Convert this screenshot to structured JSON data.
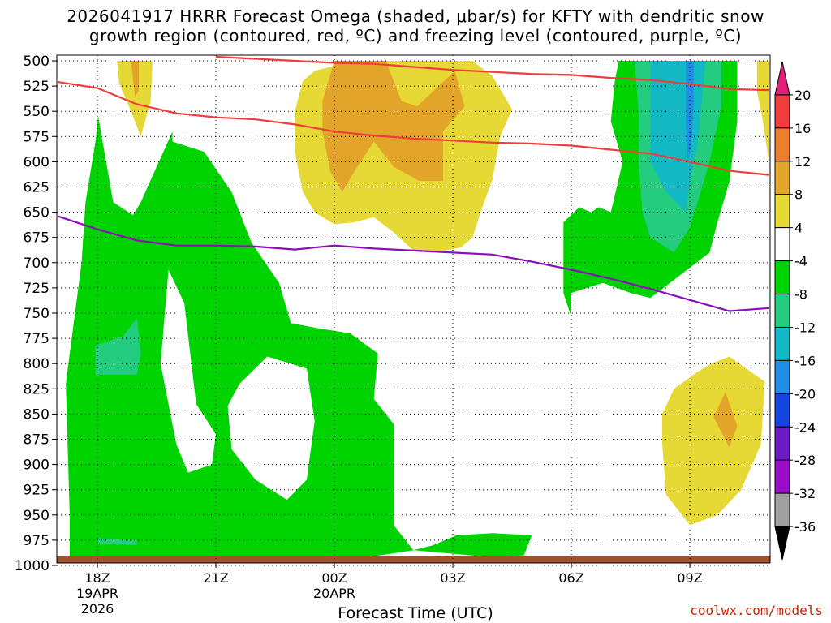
{
  "title_line1": "2026041917 HRRR Forecast Omega (shaded, μbar/s) for KFTY with dendritic snow",
  "title_line2": "growth region (contoured, red, ºC) and freezing level (contoured, purple, ºC)",
  "credit": "coolwx.com/models",
  "chart_data": {
    "type": "heatmap",
    "xlabel": "Forecast Time (UTC)",
    "ylabel": "",
    "y_axis": {
      "ticks": [
        500,
        525,
        550,
        575,
        600,
        625,
        650,
        675,
        700,
        725,
        750,
        775,
        800,
        825,
        850,
        875,
        900,
        925,
        950,
        975,
        1000
      ],
      "reversed": true,
      "units": "hPa"
    },
    "x_axis": {
      "range_hours": [
        -1,
        17
      ],
      "ticks": [
        {
          "hour": 0,
          "lines": [
            "18Z",
            "19APR",
            "2026"
          ]
        },
        {
          "hour": 3,
          "lines": [
            "21Z"
          ]
        },
        {
          "hour": 6,
          "lines": [
            "00Z",
            "20APR"
          ]
        },
        {
          "hour": 9,
          "lines": [
            "03Z"
          ]
        },
        {
          "hour": 12,
          "lines": [
            "06Z"
          ]
        },
        {
          "hour": 15,
          "lines": [
            "09Z"
          ]
        }
      ]
    },
    "colorbar": {
      "labels": [
        "20",
        "16",
        "12",
        "8",
        "4",
        "-4",
        "-8",
        "-12",
        "-16",
        "-20",
        "-24",
        "-28",
        "-32",
        "-36"
      ],
      "colors": [
        "#e0207a",
        "#f03c3c",
        "#ec7f2c",
        "#e3a42a",
        "#e6d936",
        "#ffffff",
        "#00d400",
        "#23cc7e",
        "#12b8c4",
        "#1f8ee6",
        "#1444e0",
        "#6a1bc4",
        "#9a0cc8",
        "#a0a0a0",
        "#000000"
      ]
    },
    "shaded_regions": [
      {
        "name": "green -4 to -8 west",
        "color": "#00d400",
        "points": [
          [
            -0.7,
            997
          ],
          [
            -0.7,
            950
          ],
          [
            -0.8,
            820
          ],
          [
            -0.4,
            700
          ],
          [
            -0.3,
            640
          ],
          [
            -0.05,
            580
          ],
          [
            0.02,
            555
          ],
          [
            0.4,
            640
          ],
          [
            0.9,
            653
          ],
          [
            1.1,
            640
          ],
          [
            1.9,
            570
          ],
          [
            1.9,
            580
          ],
          [
            2.7,
            590
          ],
          [
            3.4,
            630
          ],
          [
            3.9,
            680
          ],
          [
            4.6,
            720
          ],
          [
            4.9,
            760
          ],
          [
            5.6,
            765
          ],
          [
            6.4,
            770
          ],
          [
            7.1,
            790
          ],
          [
            7.0,
            835
          ],
          [
            7.5,
            860
          ],
          [
            7.5,
            910
          ],
          [
            7.5,
            960
          ],
          [
            8.0,
            985
          ],
          [
            8.5,
            980
          ],
          [
            9.1,
            970
          ],
          [
            10.0,
            968
          ],
          [
            11.0,
            970
          ],
          [
            10.8,
            990
          ],
          [
            10.0,
            992
          ],
          [
            8.0,
            985
          ],
          [
            6.0,
            997
          ],
          [
            3.0,
            998
          ]
        ]
      },
      {
        "name": "white hole 1",
        "color": "#ffffff",
        "points": [
          [
            1.8,
            707
          ],
          [
            2.2,
            740
          ],
          [
            2.5,
            840
          ],
          [
            3.0,
            870
          ],
          [
            2.9,
            900
          ],
          [
            2.3,
            908
          ],
          [
            2.0,
            880
          ],
          [
            1.8,
            840
          ],
          [
            1.6,
            800
          ]
        ]
      },
      {
        "name": "white hole 2",
        "color": "#ffffff",
        "points": [
          [
            4.3,
            793
          ],
          [
            5.3,
            805
          ],
          [
            5.5,
            857
          ],
          [
            5.3,
            915
          ],
          [
            4.8,
            935
          ],
          [
            4.0,
            915
          ],
          [
            3.4,
            885
          ],
          [
            3.3,
            842
          ],
          [
            3.6,
            820
          ]
        ]
      },
      {
        "name": "teal -8 to -12 west",
        "color": "#23cc7e",
        "points": [
          [
            -0.05,
            782
          ],
          [
            0.65,
            773
          ],
          [
            1.0,
            755
          ],
          [
            1.1,
            790
          ],
          [
            1.0,
            811
          ],
          [
            -0.05,
            811
          ]
        ]
      },
      {
        "name": "teal strip near surface",
        "color": "#23cc7e",
        "points": [
          [
            0.0,
            973
          ],
          [
            1.0,
            975
          ],
          [
            1.0,
            980
          ],
          [
            0.0,
            978
          ]
        ]
      },
      {
        "name": "yellow 4-8 left thin",
        "color": "#e6d936",
        "points": [
          [
            0.5,
            500
          ],
          [
            1.4,
            500
          ],
          [
            1.35,
            540
          ],
          [
            1.1,
            575
          ],
          [
            0.8,
            545
          ],
          [
            0.55,
            522
          ]
        ]
      },
      {
        "name": "orange left thin",
        "color": "#e3a42a",
        "points": [
          [
            0.85,
            500
          ],
          [
            1.05,
            500
          ],
          [
            1.05,
            530
          ],
          [
            0.95,
            535
          ]
        ]
      },
      {
        "name": "yellow 4-8 center",
        "color": "#e6d936",
        "points": [
          [
            6.5,
            500
          ],
          [
            9.5,
            500
          ],
          [
            10.0,
            515
          ],
          [
            10.5,
            548
          ],
          [
            10.2,
            575
          ],
          [
            10.0,
            618
          ],
          [
            9.7,
            650
          ],
          [
            9.5,
            675
          ],
          [
            9.2,
            685
          ],
          [
            8.5,
            690
          ],
          [
            8.0,
            688
          ],
          [
            7.5,
            670
          ],
          [
            7.0,
            655
          ],
          [
            6.5,
            660
          ],
          [
            6.0,
            662
          ],
          [
            5.5,
            650
          ],
          [
            5.2,
            630
          ],
          [
            5.0,
            590
          ],
          [
            5.0,
            550
          ],
          [
            5.2,
            520
          ],
          [
            5.5,
            510
          ]
        ]
      },
      {
        "name": "orange center",
        "color": "#e3a42a",
        "points": [
          [
            6.0,
            500
          ],
          [
            7.3,
            500
          ],
          [
            7.7,
            540
          ],
          [
            8.1,
            545
          ],
          [
            9.05,
            510
          ],
          [
            9.3,
            545
          ],
          [
            8.75,
            570
          ],
          [
            8.75,
            619
          ],
          [
            8.15,
            619
          ],
          [
            7.5,
            605
          ],
          [
            7.0,
            580
          ],
          [
            6.5,
            610
          ],
          [
            6.2,
            630
          ],
          [
            5.9,
            610
          ],
          [
            5.7,
            570
          ],
          [
            5.7,
            540
          ]
        ]
      },
      {
        "name": "green -4 to -8 east",
        "color": "#00d400",
        "points": [
          [
            13.2,
            500
          ],
          [
            16.2,
            500
          ],
          [
            16.2,
            560
          ],
          [
            16.0,
            620
          ],
          [
            15.7,
            660
          ],
          [
            15.5,
            690
          ],
          [
            15.0,
            705
          ],
          [
            14.5,
            720
          ],
          [
            14.0,
            735
          ],
          [
            13.5,
            730
          ],
          [
            12.8,
            720
          ],
          [
            12.0,
            730
          ],
          [
            12.0,
            754
          ],
          [
            11.8,
            730
          ],
          [
            11.8,
            680
          ],
          [
            11.8,
            660
          ],
          [
            12.2,
            645
          ],
          [
            12.5,
            650
          ],
          [
            12.7,
            645
          ],
          [
            13.0,
            650
          ],
          [
            13.3,
            600
          ],
          [
            13.0,
            560
          ],
          [
            13.1,
            520
          ]
        ]
      },
      {
        "name": "teal east",
        "color": "#23cc7e",
        "points": [
          [
            13.6,
            500
          ],
          [
            15.8,
            500
          ],
          [
            15.8,
            545
          ],
          [
            15.5,
            600
          ],
          [
            15.2,
            640
          ],
          [
            15.0,
            665
          ],
          [
            14.6,
            690
          ],
          [
            14.0,
            675
          ],
          [
            13.8,
            650
          ],
          [
            13.7,
            600
          ],
          [
            13.7,
            550
          ]
        ]
      },
      {
        "name": "cyan east",
        "color": "#12b8c4",
        "points": [
          [
            14.0,
            500
          ],
          [
            15.4,
            500
          ],
          [
            15.3,
            540
          ],
          [
            15.2,
            580
          ],
          [
            15.0,
            620
          ],
          [
            14.9,
            650
          ],
          [
            14.4,
            630
          ],
          [
            14.0,
            600
          ],
          [
            14.0,
            550
          ]
        ]
      },
      {
        "name": "blue streak",
        "color": "#1f8ee6",
        "points": [
          [
            14.9,
            500
          ],
          [
            15.1,
            500
          ],
          [
            15.1,
            540
          ],
          [
            15.05,
            580
          ],
          [
            14.95,
            600
          ],
          [
            14.9,
            560
          ]
        ]
      },
      {
        "name": "yellow right edge",
        "color": "#e6d936",
        "points": [
          [
            16.7,
            500
          ],
          [
            17.0,
            500
          ],
          [
            17.0,
            600
          ],
          [
            16.85,
            560
          ],
          [
            16.7,
            530
          ]
        ]
      },
      {
        "name": "yellow lower right",
        "color": "#e6d936",
        "points": [
          [
            16.0,
            793
          ],
          [
            16.9,
            818
          ],
          [
            16.8,
            880
          ],
          [
            16.3,
            925
          ],
          [
            15.7,
            950
          ],
          [
            15.0,
            960
          ],
          [
            14.4,
            930
          ],
          [
            14.3,
            880
          ],
          [
            14.3,
            850
          ],
          [
            14.6,
            825
          ],
          [
            15.2,
            808
          ],
          [
            15.6,
            799
          ]
        ]
      },
      {
        "name": "orange lower right",
        "color": "#e3a42a",
        "points": [
          [
            15.9,
            828
          ],
          [
            16.2,
            862
          ],
          [
            16.0,
            883
          ],
          [
            15.6,
            853
          ]
        ]
      }
    ],
    "series": [
      {
        "color": "#f03c3c",
        "x": [
          -1.0,
          0.0,
          1.0,
          2.0,
          3.0,
          4.0,
          5.0,
          6.0,
          7.0,
          8.0,
          9.0,
          10.0,
          11.0,
          12.0,
          13.0,
          14.0,
          15.0,
          16.0,
          17.0
        ],
        "y": [
          521,
          527,
          543,
          552,
          556,
          558,
          563,
          570,
          574,
          577,
          579,
          581,
          582,
          584,
          588,
          592,
          600,
          609,
          613
        ]
      },
      {
        "color": "#f03c3c",
        "x": [
          3.0,
          4.0,
          5.0,
          6.0,
          7.0,
          8.0,
          9.0,
          10.0,
          11.0,
          12.0,
          13.0,
          14.0,
          15.0,
          16.0,
          17.0
        ],
        "y": [
          496,
          498,
          500,
          502,
          503,
          506,
          509,
          511,
          513,
          514,
          517,
          519,
          523,
          528,
          529
        ]
      },
      {
        "color": "#8b0fb8",
        "x": [
          -1.0,
          0.0,
          1.0,
          2.0,
          3.0,
          4.0,
          5.0,
          6.0,
          7.0,
          8.0,
          9.0,
          10.0,
          11.0,
          12.0,
          13.0,
          14.0,
          15.0,
          16.0,
          17.0
        ],
        "y": [
          654,
          667,
          678,
          683,
          683,
          684,
          687,
          683,
          686,
          688,
          690,
          692,
          699,
          707,
          716,
          726,
          737,
          748,
          745
        ]
      }
    ],
    "surface_color": "#a0522d",
    "grid": true,
    "legend": "right colorbar"
  }
}
